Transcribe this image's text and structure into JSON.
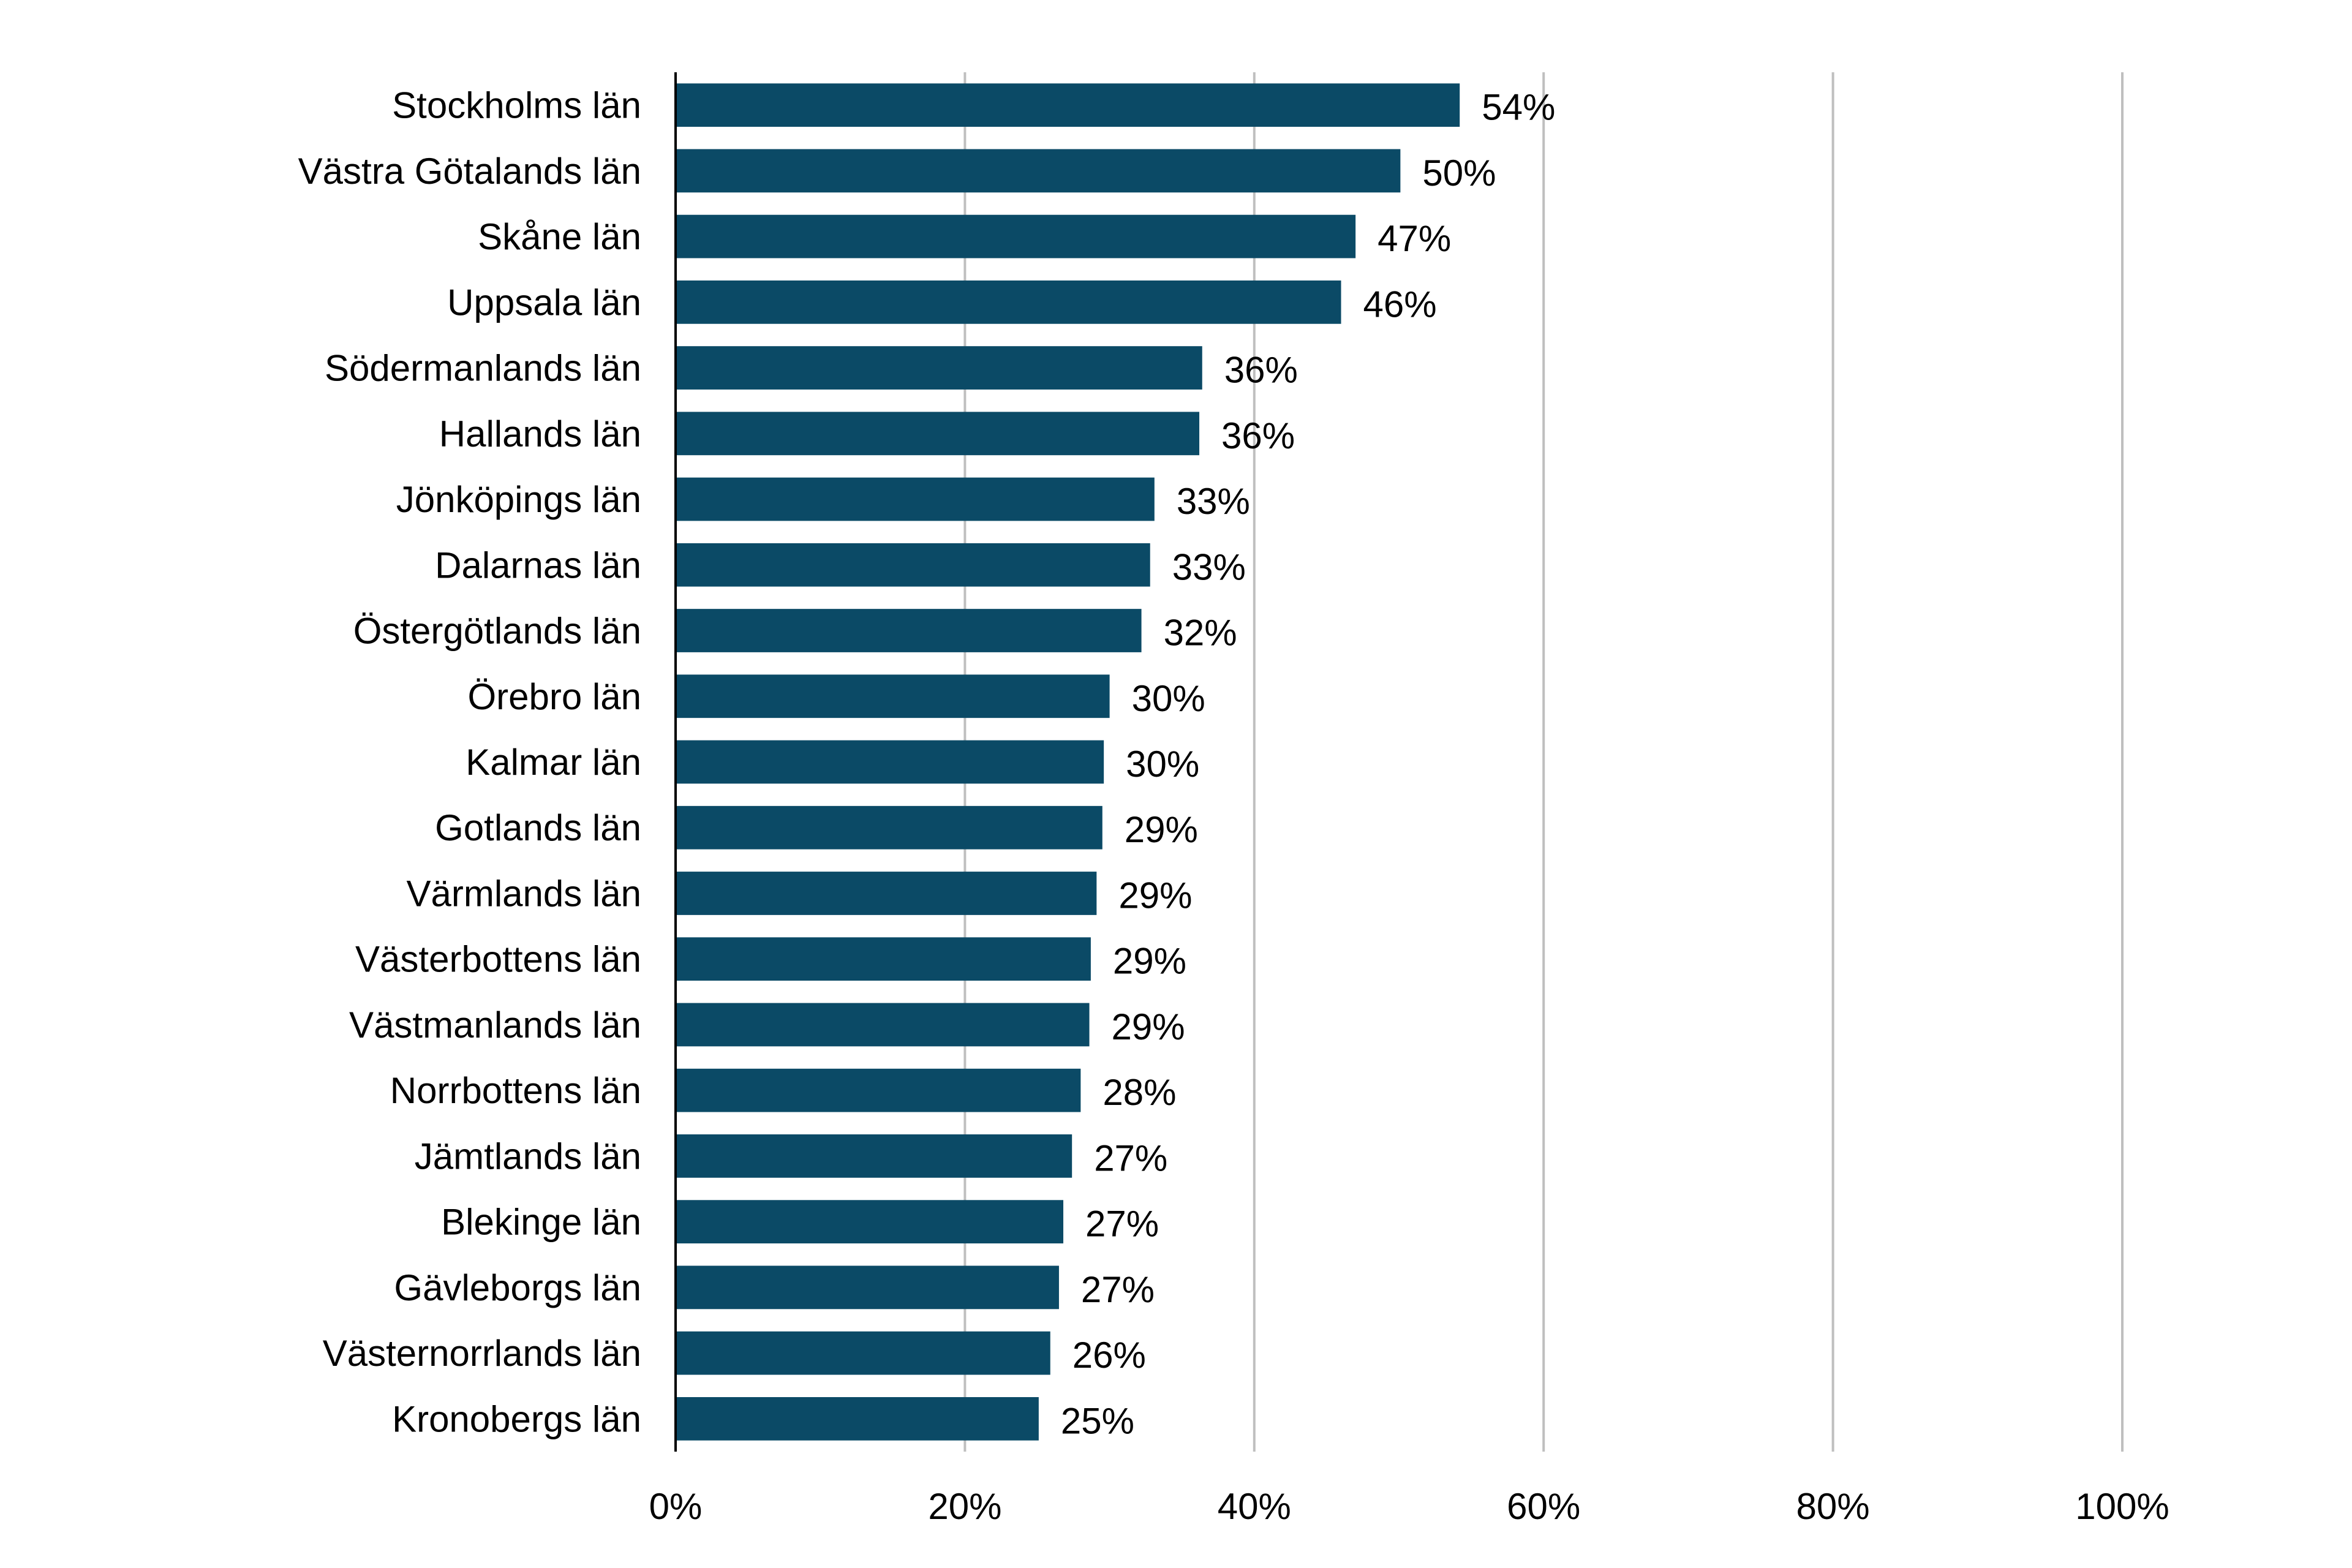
{
  "chart_data": {
    "type": "bar",
    "orientation": "horizontal",
    "categories": [
      "Stockholms län",
      "Västra Götalands län",
      "Skåne län",
      "Uppsala län",
      "Södermanlands län",
      "Hallands län",
      "Jönköpings län",
      "Dalarnas län",
      "Östergötlands län",
      "Örebro län",
      "Kalmar län",
      "Gotlands län",
      "Värmlands län",
      "Västerbottens län",
      "Västmanlands län",
      "Norrbottens län",
      "Jämtlands län",
      "Blekinge län",
      "Gävleborgs län",
      "Västernorrlands län",
      "Kronobergs län"
    ],
    "values": [
      54.2,
      50.1,
      47.0,
      46.0,
      36.4,
      36.2,
      33.1,
      32.8,
      32.2,
      30.0,
      29.6,
      29.5,
      29.1,
      28.7,
      28.6,
      28.0,
      27.4,
      26.8,
      26.5,
      25.9,
      25.1
    ],
    "value_labels": [
      "54%",
      "50%",
      "47%",
      "46%",
      "36%",
      "36%",
      "33%",
      "33%",
      "32%",
      "30%",
      "30%",
      "29%",
      "29%",
      "29%",
      "29%",
      "28%",
      "27%",
      "27%",
      "27%",
      "26%",
      "25%"
    ],
    "title": "",
    "xlabel": "",
    "ylabel": "",
    "xlim": [
      0,
      100
    ],
    "ticks": [
      0,
      20,
      40,
      60,
      80,
      100
    ],
    "tick_labels": [
      "0%",
      "20%",
      "40%",
      "60%",
      "80%",
      "100%"
    ],
    "grid": true,
    "legend": false,
    "colors": {
      "bar": "#0b4a66",
      "grid": "#bfbfbf",
      "axis": "#000000",
      "text": "#000000"
    }
  }
}
